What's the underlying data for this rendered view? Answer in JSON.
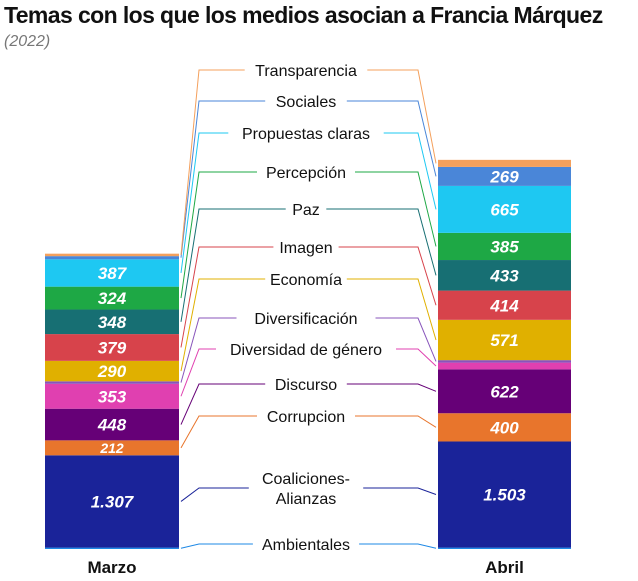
{
  "title": "Temas con los que los medios asocian a Francia Márquez",
  "subtitle": "(2022)",
  "chart_data": {
    "type": "stacked-bar",
    "title": "Temas con los que los medios asocian a Francia Márquez",
    "subtitle": "(2022)",
    "columns": [
      "Marzo",
      "Abril"
    ],
    "legend_placement": "center, between bars",
    "series": [
      {
        "name": "Ambientales",
        "color": "#1e88e5",
        "values": [
          20,
          20
        ],
        "labels": [
          "",
          ""
        ]
      },
      {
        "name": "Coaliciones-Alianzas",
        "color": "#1a2399",
        "values": [
          1307,
          1503
        ],
        "labels": [
          "1.307",
          "1.503"
        ]
      },
      {
        "name": "Corrupcion",
        "color": "#e8752c",
        "values": [
          212,
          400
        ],
        "labels": [
          "212",
          "400"
        ]
      },
      {
        "name": "Discurso",
        "color": "#660077",
        "values": [
          448,
          622
        ],
        "labels": [
          "448",
          "622"
        ]
      },
      {
        "name": "Diversidad de género",
        "color": "#e040b0",
        "values": [
          353,
          95
        ],
        "labels": [
          "353",
          ""
        ]
      },
      {
        "name": "Diversificación",
        "color": "#8855bb",
        "values": [
          35,
          35
        ],
        "labels": [
          "",
          ""
        ]
      },
      {
        "name": "Economía",
        "color": "#e0b000",
        "values": [
          290,
          571
        ],
        "labels": [
          "290",
          "571"
        ]
      },
      {
        "name": "Imagen",
        "color": "#d7434b",
        "values": [
          379,
          414
        ],
        "labels": [
          "379",
          "414"
        ]
      },
      {
        "name": "Paz",
        "color": "#176f73",
        "values": [
          348,
          433
        ],
        "labels": [
          "348",
          "433"
        ]
      },
      {
        "name": "Percepción",
        "color": "#1ea845",
        "values": [
          324,
          385
        ],
        "labels": [
          "324",
          "385"
        ]
      },
      {
        "name": "Propuestas claras",
        "color": "#1ec8f2",
        "values": [
          387,
          665
        ],
        "labels": [
          "387",
          "665"
        ]
      },
      {
        "name": "Sociales",
        "color": "#4a86d8",
        "values": [
          45,
          269
        ],
        "labels": [
          "",
          "269"
        ]
      },
      {
        "name": "Transparencia",
        "color": "#f4a05c",
        "values": [
          35,
          100
        ],
        "labels": [
          "",
          ""
        ]
      }
    ]
  }
}
